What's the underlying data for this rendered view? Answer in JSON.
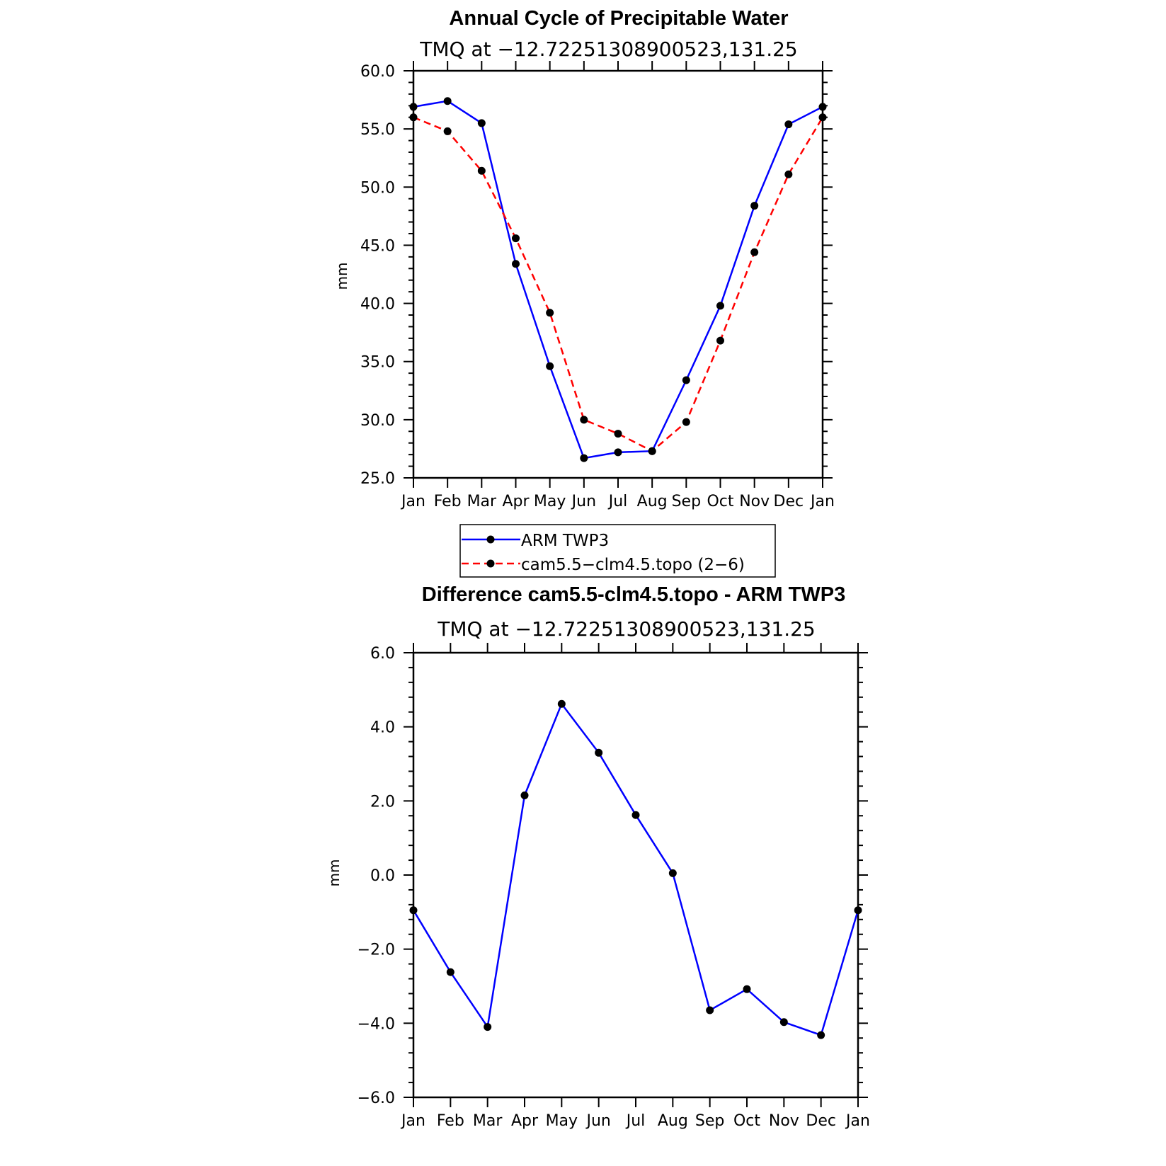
{
  "chart_data": [
    {
      "type": "line",
      "title": "Annual Cycle of Precipitable Water",
      "subtitle": "TMQ at −12.72251308900523,131.25",
      "xlabel": "",
      "ylabel": "mm",
      "categories": [
        "Jan",
        "Feb",
        "Mar",
        "Apr",
        "May",
        "Jun",
        "Jul",
        "Aug",
        "Sep",
        "Oct",
        "Nov",
        "Dec",
        "Jan"
      ],
      "ylim": [
        25.0,
        60.0
      ],
      "yticks": [
        25.0,
        30.0,
        35.0,
        40.0,
        45.0,
        50.0,
        55.0,
        60.0
      ],
      "ytick_labels": [
        "25.0",
        "30.0",
        "35.0",
        "40.0",
        "45.0",
        "50.0",
        "55.0",
        "60.0"
      ],
      "grid": false,
      "series": [
        {
          "name": "ARM TWP3",
          "color": "#0000ff",
          "dash": "solid",
          "values": [
            56.9,
            57.4,
            55.5,
            43.4,
            34.6,
            26.7,
            27.2,
            27.3,
            33.4,
            39.8,
            48.4,
            55.4,
            56.9
          ]
        },
        {
          "name": "cam5.5−clm4.5.topo (2−6)",
          "color": "#ff0000",
          "dash": "dashed",
          "values": [
            56.0,
            54.8,
            51.4,
            45.6,
            39.2,
            30.0,
            28.8,
            27.3,
            29.8,
            36.8,
            44.4,
            51.1,
            56.0
          ]
        }
      ],
      "legend": {
        "position": "bottom",
        "entries": [
          "ARM TWP3",
          "cam5.5−clm4.5.topo (2−6)"
        ]
      }
    },
    {
      "type": "line",
      "title": "Difference cam5.5-clm4.5.topo - ARM TWP3",
      "subtitle": "TMQ at −12.72251308900523,131.25",
      "xlabel": "",
      "ylabel": "mm",
      "categories": [
        "Jan",
        "Feb",
        "Mar",
        "Apr",
        "May",
        "Jun",
        "Jul",
        "Aug",
        "Sep",
        "Oct",
        "Nov",
        "Dec",
        "Jan"
      ],
      "ylim": [
        -6.0,
        6.0
      ],
      "yticks": [
        -6.0,
        -4.0,
        -2.0,
        0.0,
        2.0,
        4.0,
        6.0
      ],
      "ytick_labels": [
        "−6.0",
        "−4.0",
        "−2.0",
        "0.0",
        "2.0",
        "4.0",
        "6.0"
      ],
      "grid": false,
      "series": [
        {
          "name": "",
          "color": "#0000ff",
          "dash": "solid",
          "values": [
            -0.95,
            -2.62,
            -4.1,
            2.15,
            4.62,
            3.3,
            1.62,
            0.05,
            -3.65,
            -3.08,
            -3.97,
            -4.32,
            -0.95
          ]
        }
      ]
    }
  ]
}
